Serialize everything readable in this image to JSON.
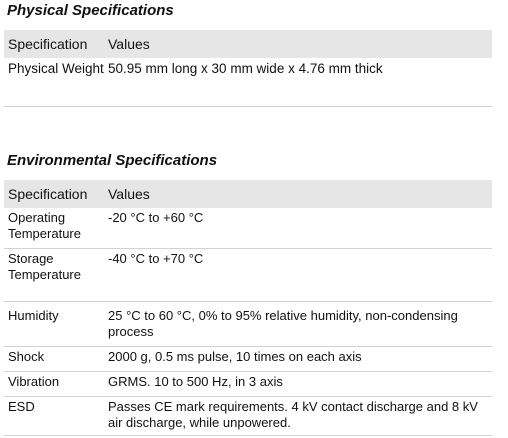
{
  "physical": {
    "title": "Physical Specifications",
    "header": {
      "spec": "Specification",
      "values": "Values"
    },
    "rows": [
      {
        "spec": "Physical Weight",
        "value": "50.95 mm long x 30 mm wide x 4.76 mm thick"
      }
    ]
  },
  "environmental": {
    "title": "Environmental Specifications",
    "header": {
      "spec": "Specification",
      "values": "Values"
    },
    "rows": [
      {
        "spec": "Operating Temperature",
        "value": "-20 °C to +60 °C"
      },
      {
        "spec": "Storage Temperature",
        "value": "-40 °C to +70 °C"
      },
      {
        "spec": "Humidity",
        "value": "25 °C to 60 °C, 0% to 95% relative humidity, non-condensing process"
      },
      {
        "spec": "Shock",
        "value": "2000 g, 0.5 ms pulse, 10 times on each axis"
      },
      {
        "spec": "Vibration",
        "value": "GRMS. 10 to 500 Hz, in 3 axis"
      },
      {
        "spec": "ESD",
        "value": "Passes CE mark requirements. 4 kV contact discharge and 8 kV air discharge, while unpowered."
      }
    ]
  }
}
